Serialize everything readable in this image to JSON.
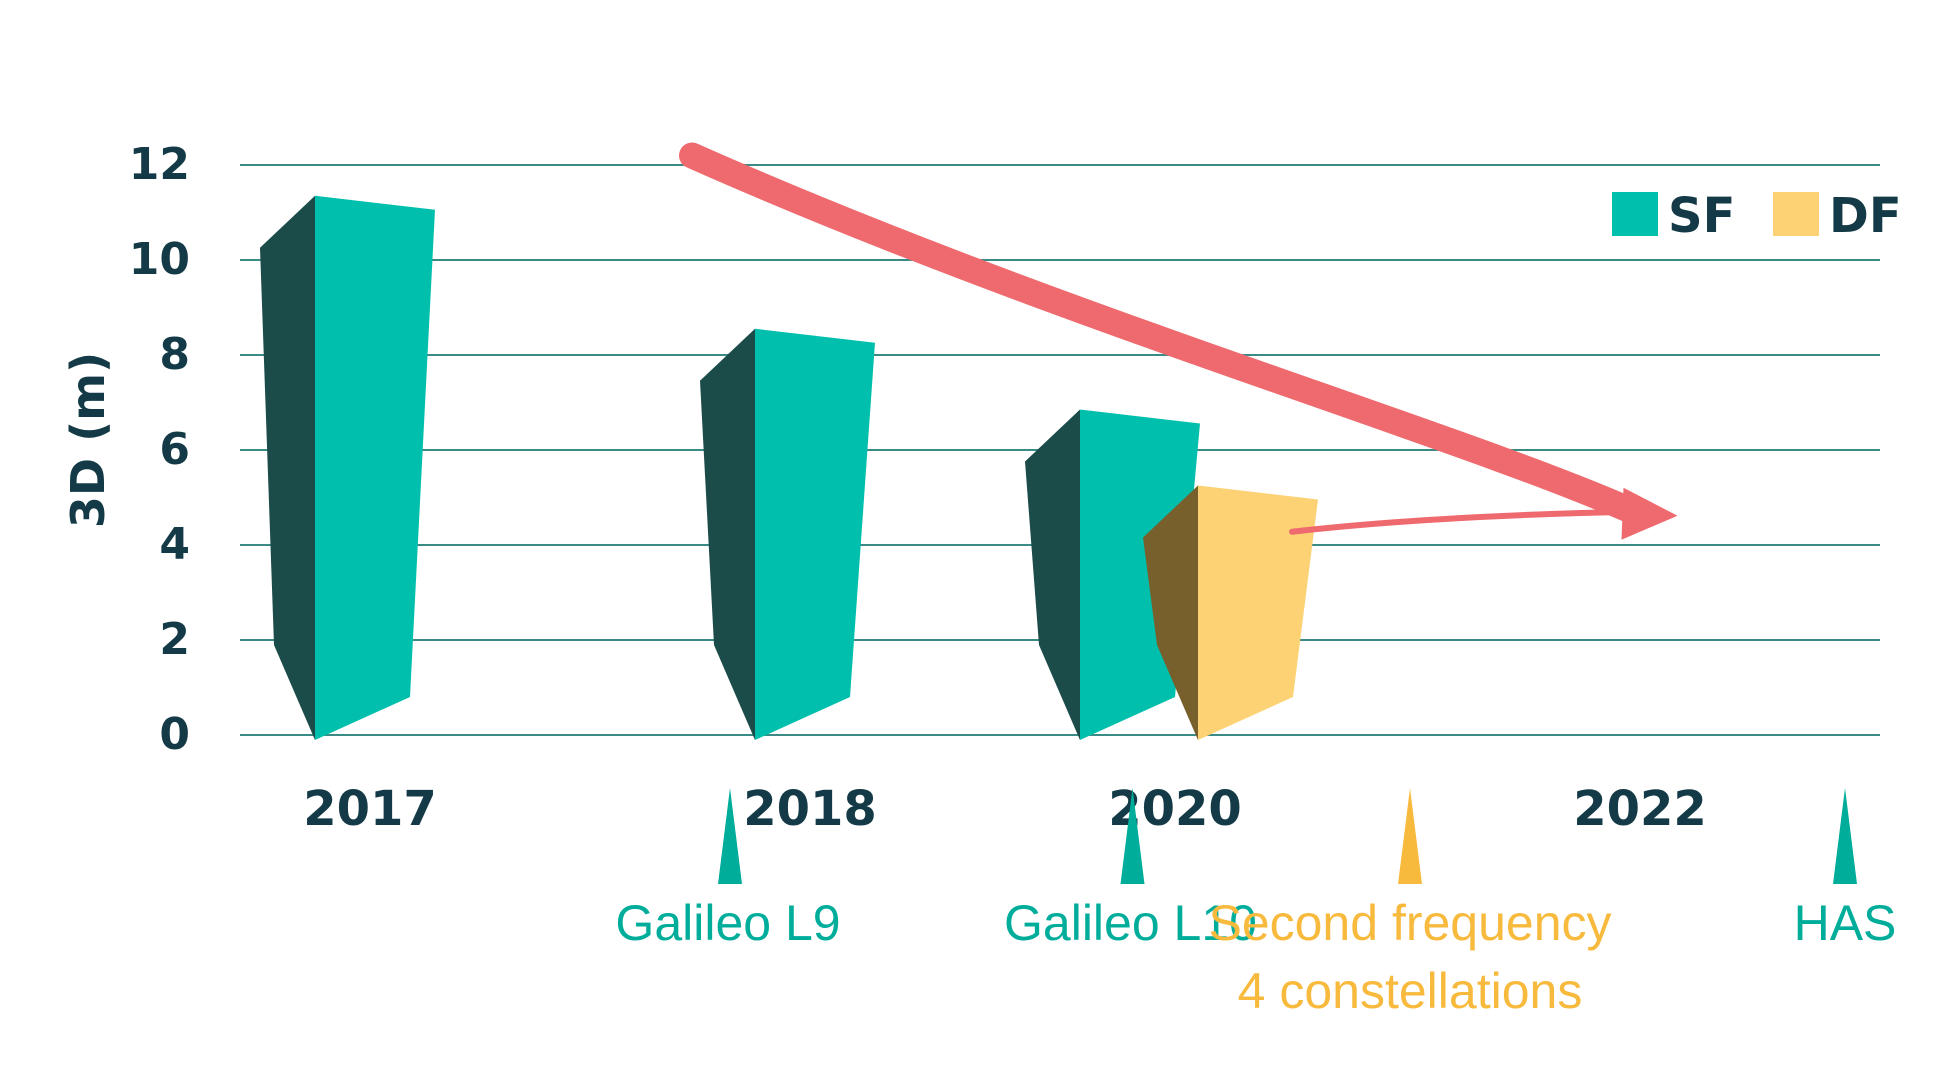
{
  "chart_data": {
    "type": "bar",
    "ylabel": "3D (m)",
    "ylim": [
      0,
      12
    ],
    "yticks": [
      0,
      2,
      4,
      6,
      8,
      10,
      12
    ],
    "grid": true,
    "legend": {
      "placement": "top-right",
      "entries": [
        {
          "label": "SF",
          "color": "#00c0ad"
        },
        {
          "label": "DF",
          "color": "#fdd274"
        }
      ]
    },
    "categories": [
      "2017",
      "2018",
      "2020",
      "2022"
    ],
    "series": [
      {
        "name": "SF",
        "color": "#00c0ad",
        "side_color": "#1b4c4a",
        "values": [
          11.1,
          8.3,
          6.6,
          null
        ]
      },
      {
        "name": "DF",
        "color": "#fdd274",
        "side_color": "#77602c",
        "values": [
          null,
          null,
          5.0,
          null
        ]
      }
    ],
    "trend": {
      "color": "#ef6a6e",
      "points": [
        [
          0.8,
          12.2
        ],
        [
          2.9,
          4.7
        ]
      ]
    },
    "events": [
      {
        "label_lines": [
          "Galileo L9"
        ],
        "color": "#00ad9a",
        "position": 0.5
      },
      {
        "label_lines": [
          "Galileo L10"
        ],
        "color": "#00ad9a",
        "position": 1.5
      },
      {
        "label_lines": [
          "Second frequency",
          "4 constellations"
        ],
        "color": "#f8ba3d",
        "position": 2.3
      },
      {
        "label_lines": [
          "HAS"
        ],
        "color": "#00ad9a",
        "position": 3.35
      }
    ]
  }
}
